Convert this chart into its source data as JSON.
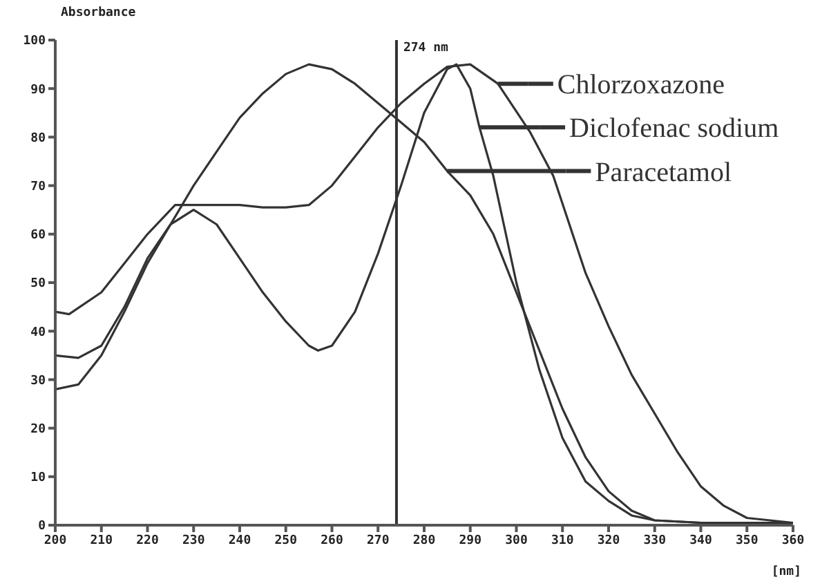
{
  "chart_data": {
    "type": "line",
    "ylabel": "Absorbance",
    "xlabel": "[nm]",
    "xlim": [
      200,
      360
    ],
    "xticks": [
      200,
      210,
      220,
      230,
      240,
      250,
      260,
      270,
      280,
      290,
      300,
      310,
      320,
      330,
      340,
      350,
      360
    ],
    "ylim": [
      0,
      100
    ],
    "yticks": [
      0,
      10,
      20,
      30,
      40,
      50,
      60,
      70,
      80,
      90,
      100
    ],
    "legend": "top right",
    "marker": "none",
    "line_style": "solid",
    "ref_lines": [
      {
        "axis": "x",
        "value": 274,
        "label": "274 nm",
        "color": "#333333"
      }
    ],
    "series": [
      {
        "name": "Chlorzoxazone",
        "color": "#333333",
        "x": [
          200,
          203,
          210,
          215,
          220,
          226,
          230,
          240,
          245,
          250,
          255,
          260,
          265,
          270,
          275,
          280,
          285,
          290,
          296,
          303,
          308,
          315,
          320,
          325,
          330,
          335,
          340,
          345,
          350,
          355,
          360
        ],
        "values": [
          44,
          43.5,
          48,
          54,
          60,
          66,
          66,
          66,
          65.5,
          65.5,
          66,
          70,
          76,
          82,
          87,
          91,
          94.5,
          95,
          91,
          81,
          72,
          52,
          41,
          31,
          23,
          15,
          8,
          4,
          1.5,
          1,
          0.5
        ]
      },
      {
        "name": "Diclofenac sodium",
        "color": "#333333",
        "x": [
          200,
          205,
          210,
          215,
          220,
          225,
          230,
          235,
          240,
          245,
          250,
          255,
          257,
          260,
          265,
          270,
          275,
          280,
          285,
          287,
          290,
          292,
          295,
          300,
          305,
          310,
          315,
          320,
          325,
          330,
          340,
          360
        ],
        "values": [
          35,
          34.5,
          37,
          45,
          55,
          62,
          65,
          62,
          55,
          48,
          42,
          37,
          36,
          37,
          44,
          56,
          70,
          85,
          94,
          95,
          90,
          82,
          72,
          50,
          32,
          18,
          9,
          5,
          2,
          1,
          0.5,
          0.5
        ]
      },
      {
        "name": "Paracetamol",
        "color": "#333333",
        "x": [
          200,
          205,
          210,
          215,
          220,
          225,
          230,
          235,
          240,
          245,
          250,
          255,
          260,
          265,
          270,
          275,
          280,
          285,
          290,
          295,
          300,
          305,
          310,
          315,
          320,
          325,
          330,
          340,
          360
        ],
        "values": [
          28,
          29,
          35,
          44,
          54,
          62,
          70,
          77,
          84,
          89,
          93,
          95,
          94,
          91,
          87,
          83,
          79,
          73,
          68,
          60,
          48,
          36,
          24,
          14,
          7,
          3,
          1,
          0.5,
          0.5
        ]
      }
    ]
  }
}
